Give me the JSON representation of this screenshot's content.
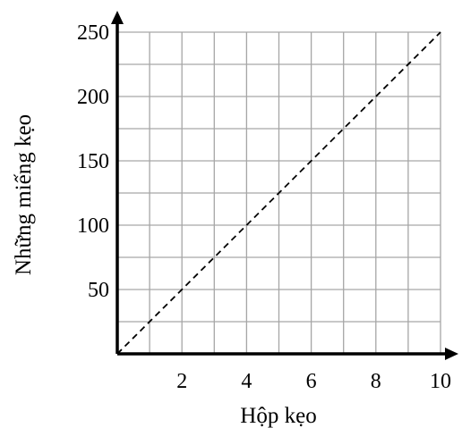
{
  "chart_data": {
    "type": "line",
    "xlabel": "Hộp kẹo",
    "ylabel": "Những miếng kẹo",
    "xlim": [
      0,
      10
    ],
    "ylim": [
      0,
      250
    ],
    "x_ticks": [
      2,
      4,
      6,
      8,
      10
    ],
    "x_tick_labels": [
      "2",
      "4",
      "6",
      "8",
      "10"
    ],
    "y_ticks": [
      50,
      100,
      150,
      200,
      250
    ],
    "y_tick_labels": [
      "50",
      "100",
      "150",
      "200",
      "250"
    ],
    "x_grid_step": 1,
    "y_grid_step": 25,
    "grid": true,
    "series": [
      {
        "x": [
          0,
          10
        ],
        "y": [
          0,
          250
        ],
        "style": "dashed",
        "color": "#000000"
      }
    ],
    "colors": {
      "grid": "#a6a6a6",
      "axis": "#000000",
      "line": "#000000"
    }
  }
}
